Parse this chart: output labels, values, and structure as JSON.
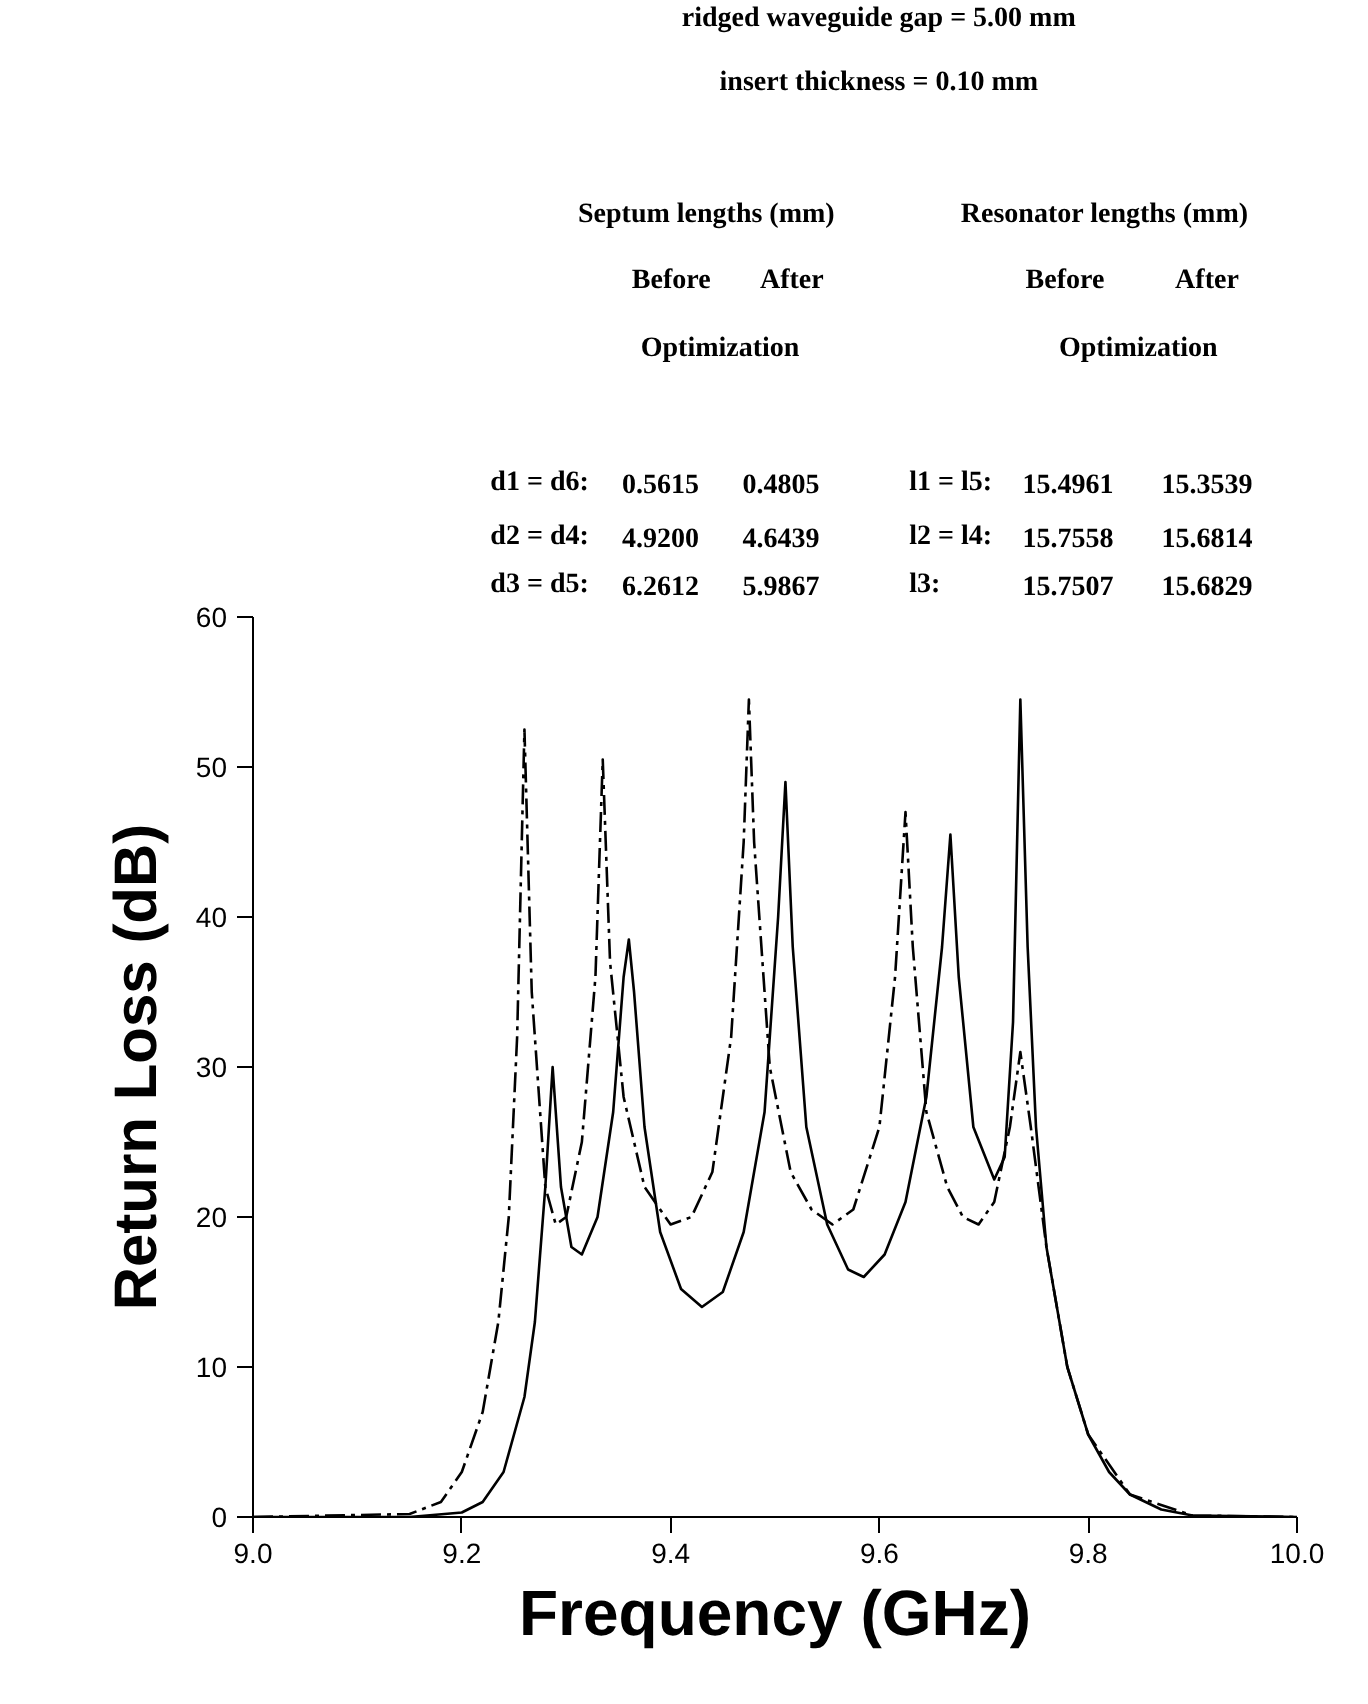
{
  "chart_data": {
    "type": "line",
    "xlabel": "Frequency (GHz)",
    "ylabel": "Return Loss (dB)",
    "xlim": [
      9.0,
      10.0
    ],
    "xticks": [
      {
        "value": 9.0,
        "label": "9.0"
      },
      9.2,
      9.4,
      9.6,
      9.8,
      {
        "value": 10.0,
        "label": "10.0"
      }
    ],
    "ylim": [
      0,
      60
    ],
    "yticks": [
      0,
      10,
      20,
      30,
      40,
      50,
      60
    ],
    "grid": false,
    "marker": "none",
    "annotations": [
      "ridged waveguide gap = 5.00 mm",
      "insert thickness = 0.10 mm",
      "Septum lengths (mm)",
      "Before",
      "After",
      "Optimization",
      "Resonator lengths (mm)",
      "Before",
      "After",
      "Optimization",
      "d1 = d6:",
      "0.5615",
      "0.4805",
      "l1 = l5:",
      "15.4961",
      "15.3539",
      "d2 = d4:",
      "4.9200",
      "4.6439",
      "l2 = l4:",
      "15.7558",
      "15.6814",
      "d3 = d5:",
      "6.2612",
      "5.9867",
      "l3:",
      "15.7507",
      "15.6829"
    ],
    "series": [
      {
        "color": "#000000",
        "line_style": "solid",
        "x": [
          9.0,
          9.15,
          9.2,
          9.22,
          9.24,
          9.26,
          9.27,
          9.28,
          9.287,
          9.295,
          9.305,
          9.315,
          9.33,
          9.345,
          9.355,
          9.36,
          9.365,
          9.375,
          9.39,
          9.41,
          9.43,
          9.45,
          9.47,
          9.49,
          9.503,
          9.51,
          9.517,
          9.53,
          9.55,
          9.57,
          9.585,
          9.605,
          9.625,
          9.645,
          9.66,
          9.668,
          9.676,
          9.69,
          9.71,
          9.72,
          9.728,
          9.735,
          9.742,
          9.75,
          9.76,
          9.78,
          9.8,
          9.82,
          9.84,
          9.87,
          9.9,
          10.0
        ],
        "values": [
          0,
          0,
          0.3,
          1,
          3,
          8,
          13,
          22,
          30,
          22,
          18,
          17.5,
          20,
          27,
          36,
          38.5,
          35,
          26,
          19,
          15.2,
          14,
          15,
          19,
          27,
          40,
          49,
          38,
          26,
          19.5,
          16.5,
          16,
          17.5,
          21,
          28,
          38,
          45.5,
          36,
          26,
          22.5,
          24,
          33,
          54.5,
          38,
          26,
          18,
          10,
          5.5,
          3,
          1.5,
          0.5,
          0.1,
          0
        ]
      },
      {
        "color": "#000000",
        "line_style": "dashdot",
        "x": [
          9.0,
          9.15,
          9.18,
          9.2,
          9.22,
          9.235,
          9.245,
          9.253,
          9.26,
          9.267,
          9.28,
          9.29,
          9.3,
          9.315,
          9.328,
          9.335,
          9.342,
          9.355,
          9.375,
          9.4,
          9.42,
          9.44,
          9.458,
          9.47,
          9.475,
          9.48,
          9.495,
          9.515,
          9.535,
          9.555,
          9.575,
          9.6,
          9.615,
          9.625,
          9.632,
          9.645,
          9.665,
          9.68,
          9.695,
          9.71,
          9.725,
          9.735,
          9.745,
          9.76,
          9.78,
          9.8,
          9.84,
          9.9,
          10.0
        ],
        "values": [
          0,
          0.2,
          1,
          3,
          7,
          13,
          20,
          32,
          52.5,
          35,
          22,
          19.5,
          20,
          25,
          36,
          50.5,
          37,
          28,
          22,
          19.5,
          20,
          23,
          32,
          45,
          54.5,
          45,
          30,
          23,
          20.5,
          19.5,
          20.5,
          26,
          36,
          47,
          38,
          27,
          22,
          20,
          19.5,
          21,
          26,
          31,
          26,
          18,
          10,
          5.5,
          1.5,
          0.1,
          0
        ]
      }
    ]
  }
}
